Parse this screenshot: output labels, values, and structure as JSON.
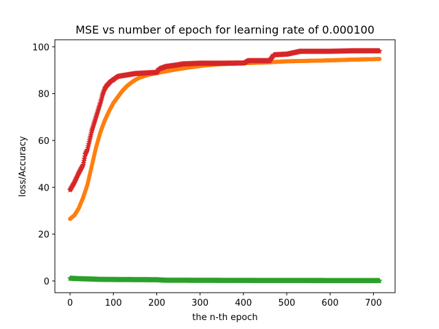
{
  "chart_data": {
    "type": "line",
    "title": "MSE vs number of epoch for learning rate of 0.000100",
    "xlabel": "the n-th epoch",
    "ylabel": "loss/Accuracy",
    "xlim": [
      -35,
      750
    ],
    "ylim": [
      -5,
      103
    ],
    "xticks": [
      0,
      100,
      200,
      300,
      400,
      500,
      600,
      700
    ],
    "yticks": [
      0,
      20,
      40,
      60,
      80,
      100
    ],
    "grid": false,
    "legend": "none",
    "series": [
      {
        "color": "#ff7f0e",
        "marker": "circle",
        "x": [
          0,
          10,
          20,
          30,
          40,
          50,
          60,
          70,
          80,
          90,
          100,
          110,
          120,
          130,
          140,
          150,
          160,
          180,
          200,
          220,
          250,
          280,
          300,
          320,
          350,
          400,
          450,
          470,
          500,
          550,
          600,
          650,
          700,
          714
        ],
        "y": [
          26.5,
          28,
          31,
          35.5,
          41,
          49,
          57,
          63.5,
          68.5,
          72.5,
          76,
          78.5,
          81,
          83,
          84.5,
          85.8,
          86.8,
          88,
          88.8,
          89.5,
          90.5,
          91.3,
          91.8,
          92.2,
          92.6,
          93,
          93.3,
          93.5,
          93.8,
          94,
          94.2,
          94.5,
          94.7,
          94.8
        ]
      },
      {
        "color": "#d62728",
        "marker": "star",
        "x": [
          0,
          10,
          20,
          30,
          35,
          40,
          45,
          50,
          55,
          60,
          65,
          70,
          75,
          80,
          85,
          90,
          95,
          100,
          105,
          110,
          150,
          200,
          205,
          220,
          240,
          260,
          300,
          350,
          400,
          410,
          460,
          470,
          500,
          530,
          600,
          650,
          714
        ],
        "y": [
          38.8,
          42,
          46,
          49.5,
          54,
          56,
          60,
          64,
          67,
          70,
          73,
          76,
          79.5,
          82,
          83.5,
          84.5,
          85.5,
          86,
          86.8,
          87.3,
          88.5,
          89,
          90.5,
          91.5,
          92,
          92.6,
          92.9,
          92.9,
          93,
          94,
          94,
          96.5,
          96.8,
          98,
          98,
          98.2,
          98.2
        ]
      },
      {
        "color": "#2ca02c",
        "marker": "star",
        "x": [
          0,
          10,
          20,
          30,
          50,
          70,
          100,
          150,
          200,
          220,
          300,
          400,
          500,
          600,
          700,
          714
        ],
        "y": [
          1.1,
          1.0,
          0.9,
          0.85,
          0.75,
          0.6,
          0.55,
          0.5,
          0.45,
          0.25,
          0.2,
          0.15,
          0.12,
          0.1,
          0.08,
          0.08
        ]
      }
    ]
  }
}
